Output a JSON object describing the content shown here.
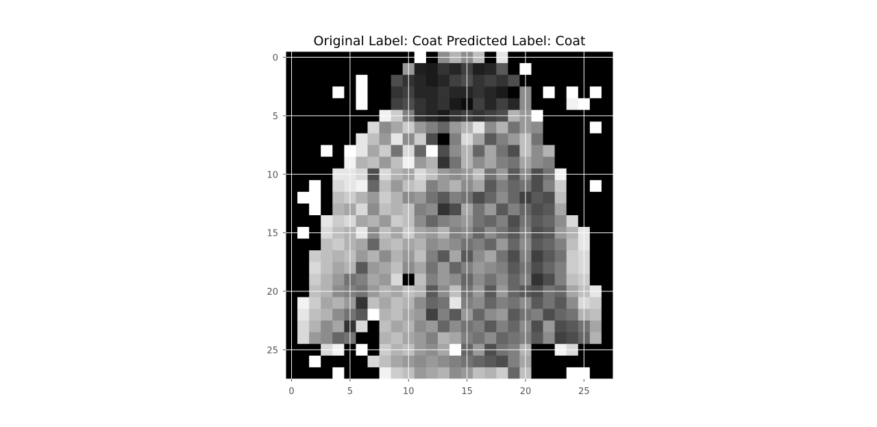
{
  "chart_data": {
    "type": "heatmap",
    "title": "Original Label: Coat  Predicted Label: Coat",
    "xlabel": "",
    "ylabel": "",
    "colormap": "gray",
    "grid": true,
    "grid_color": "#ffffff",
    "xlim": [
      -0.5,
      27.5
    ],
    "ylim": [
      27.5,
      -0.5
    ],
    "x_ticks": [
      0,
      5,
      10,
      15,
      20,
      25
    ],
    "y_ticks": [
      0,
      5,
      10,
      15,
      20,
      25
    ],
    "value_range": [
      0,
      1
    ],
    "rows": 28,
    "cols": 28,
    "values": [
      [
        0,
        0,
        0,
        0,
        0,
        0,
        0,
        0,
        0,
        0,
        0,
        1,
        0,
        0.55,
        0.7,
        0.55,
        0.75,
        0,
        0.9,
        0,
        0,
        0,
        0,
        0,
        0,
        0,
        0,
        0
      ],
      [
        0,
        0,
        0,
        0,
        0,
        0,
        0,
        0,
        0,
        0,
        0.6,
        0.12,
        0.1,
        0.2,
        0.15,
        0.25,
        0.12,
        0.15,
        0.35,
        0,
        1,
        0,
        0,
        0,
        0,
        0,
        0,
        0
      ],
      [
        0,
        0,
        0,
        0,
        0,
        0,
        1,
        0,
        0,
        0.3,
        0.2,
        0.15,
        0.1,
        0.15,
        0.25,
        0.3,
        0.2,
        0.25,
        0.2,
        0.3,
        0,
        0,
        0,
        0,
        0,
        0,
        0,
        0
      ],
      [
        0,
        0,
        0,
        0,
        1,
        0,
        1,
        0,
        0,
        0.2,
        0.25,
        0.15,
        0.15,
        0.2,
        0.15,
        0.15,
        0.2,
        0.15,
        0.1,
        0,
        0.55,
        0,
        1,
        0,
        1,
        0,
        1,
        0
      ],
      [
        0,
        0,
        0,
        0,
        0,
        0,
        1,
        0,
        0,
        0.25,
        0.3,
        0.2,
        0.15,
        0.2,
        0.1,
        0.05,
        0.25,
        0.15,
        0.25,
        0.15,
        0.55,
        0,
        0,
        0,
        0.95,
        1,
        0,
        0
      ],
      [
        0,
        0,
        0,
        0,
        0,
        0,
        0,
        0,
        0.95,
        0.8,
        0.5,
        0.2,
        0.15,
        0.1,
        0.2,
        0.25,
        0.2,
        0.25,
        0.3,
        0.7,
        0.6,
        1,
        0,
        0,
        0,
        0,
        0,
        0
      ],
      [
        0,
        0,
        0,
        0,
        0,
        0,
        0,
        0.85,
        0.55,
        0.65,
        0.8,
        0.6,
        0.5,
        0.4,
        0.6,
        0.7,
        0.9,
        0.55,
        0.7,
        0.45,
        0.6,
        0.55,
        0,
        0,
        0,
        0,
        1,
        0
      ],
      [
        0,
        0,
        0,
        0,
        0,
        0,
        0.9,
        0.75,
        0.6,
        0.9,
        0.55,
        0.8,
        0.3,
        0,
        0.5,
        0.85,
        0.65,
        0.35,
        0.5,
        0.6,
        0.75,
        0.45,
        0,
        0,
        0,
        0,
        0,
        0
      ],
      [
        0,
        0,
        0,
        1,
        0,
        1,
        0.9,
        0.65,
        0.8,
        0.45,
        0.85,
        0.4,
        1,
        0.3,
        0.55,
        0.7,
        0.4,
        0.65,
        0.45,
        0.3,
        0.75,
        0.55,
        0.7,
        0,
        0,
        0,
        0,
        0
      ],
      [
        0,
        0,
        0,
        0,
        0,
        0.95,
        0.7,
        0.75,
        0.6,
        0.75,
        0.95,
        0.6,
        0.7,
        0.2,
        0.45,
        0.7,
        0.55,
        0.65,
        0.5,
        0.45,
        0.65,
        0.55,
        0.5,
        0,
        0,
        0,
        0,
        0
      ],
      [
        0,
        0,
        0,
        0,
        0.9,
        0.9,
        0.85,
        0.3,
        0.85,
        0.7,
        0.65,
        0.85,
        0.75,
        0.6,
        0.55,
        0.6,
        0.75,
        0.45,
        0.6,
        0.35,
        0.55,
        0.3,
        0.45,
        0.95,
        0,
        0,
        0,
        0
      ],
      [
        0,
        0,
        1,
        0,
        0.85,
        0.9,
        0.95,
        0.4,
        0.75,
        0.6,
        0.75,
        0.8,
        0.5,
        0.6,
        0.7,
        0.55,
        0.65,
        0.35,
        0.5,
        0.4,
        0.45,
        0.3,
        0.5,
        0.8,
        0,
        0,
        1,
        0
      ],
      [
        0,
        1,
        1,
        0,
        0.75,
        0.8,
        0.7,
        0.6,
        0.8,
        0.7,
        0.55,
        0.6,
        0.45,
        0.35,
        0.5,
        0.45,
        0.3,
        0.4,
        0.55,
        0.4,
        0.25,
        0.35,
        0.3,
        0.75,
        0,
        0,
        0,
        0
      ],
      [
        0,
        0,
        1,
        0,
        0.7,
        0.65,
        0.85,
        0.55,
        0.75,
        0.7,
        0.75,
        0.5,
        0.55,
        0.2,
        0.3,
        0.65,
        0.45,
        0.6,
        0.35,
        0.5,
        0.4,
        0.3,
        0.35,
        0.65,
        0,
        0,
        0,
        0
      ],
      [
        0,
        0,
        0,
        0.9,
        0.8,
        0.85,
        0.65,
        0.7,
        0.6,
        0.8,
        0.75,
        0.55,
        0.4,
        0.5,
        0.55,
        0.6,
        0.45,
        0.4,
        0.5,
        0.3,
        0.45,
        0.35,
        0.4,
        0.55,
        0.85,
        0,
        0,
        0
      ],
      [
        0,
        1,
        0,
        0.85,
        0.75,
        0.7,
        0.9,
        0.55,
        0.75,
        0.65,
        0.8,
        0.65,
        0.6,
        0.7,
        0.5,
        0.55,
        0.4,
        0.55,
        0.45,
        0.35,
        0.5,
        0.3,
        0.35,
        0.6,
        0.7,
        0.9,
        0,
        0
      ],
      [
        0,
        0,
        0,
        0.75,
        0.8,
        0.7,
        0.65,
        0.4,
        0.7,
        0.75,
        0.65,
        0.7,
        0.55,
        0.6,
        0.55,
        0.45,
        0.5,
        0.4,
        0.6,
        0.4,
        0.55,
        0.35,
        0.4,
        0.5,
        0.75,
        0.9,
        0,
        0
      ],
      [
        0,
        0,
        0.8,
        0.75,
        0.7,
        0.75,
        0.6,
        0.7,
        0.55,
        0.7,
        0.6,
        0.75,
        0.5,
        0.35,
        0.65,
        0.35,
        0.55,
        0.65,
        0.45,
        0.3,
        0.5,
        0.25,
        0.35,
        0.45,
        0.8,
        0.85,
        0,
        0
      ],
      [
        0,
        0,
        0.85,
        0.75,
        0.65,
        0.7,
        0.35,
        0.6,
        0.65,
        0.75,
        0.55,
        0.65,
        0.45,
        0.6,
        0.4,
        0.5,
        0.6,
        0.55,
        0.5,
        0.35,
        0.45,
        0.3,
        0.4,
        0.5,
        0.8,
        0.85,
        0,
        0
      ],
      [
        0,
        0,
        0.8,
        0.7,
        0.6,
        0.45,
        0.5,
        0.65,
        0.6,
        0.85,
        0,
        0.75,
        0.5,
        0.6,
        0.55,
        0.4,
        0.55,
        0.45,
        0.55,
        0.4,
        0.5,
        0.2,
        0.3,
        0.5,
        0.75,
        0.8,
        0,
        0
      ],
      [
        0,
        0,
        0.75,
        0.7,
        0.55,
        0.5,
        0.45,
        0.6,
        0.7,
        0.65,
        0.75,
        0.7,
        0.35,
        0.55,
        0.75,
        0.45,
        0.6,
        0.35,
        0.6,
        0.4,
        0.35,
        0.3,
        0.45,
        0.4,
        0.65,
        0.75,
        0.9,
        0
      ],
      [
        0,
        0.95,
        0.8,
        0.65,
        0.7,
        0.6,
        0.2,
        0.75,
        0.65,
        0.75,
        0.7,
        0.55,
        0.4,
        0.45,
        0.9,
        0.5,
        0.55,
        0.4,
        0.5,
        0.45,
        0.55,
        0.35,
        0.45,
        0.35,
        0.55,
        0.85,
        0.8,
        0
      ],
      [
        0,
        0.9,
        0.75,
        0.7,
        0.55,
        0.45,
        0.35,
        1,
        0.7,
        0.75,
        0.65,
        0.6,
        0.25,
        0.5,
        0.35,
        0.6,
        0.4,
        0.55,
        0.6,
        0.35,
        0.45,
        0.5,
        0.3,
        0.4,
        0.45,
        0.7,
        0.75,
        0
      ],
      [
        0,
        0.85,
        0.7,
        0.55,
        0.65,
        0.2,
        0.85,
        0,
        0.75,
        0.65,
        0.7,
        0.55,
        0.6,
        0.4,
        0.55,
        0.45,
        0.5,
        0.35,
        0.5,
        0.4,
        0.55,
        0.3,
        0.6,
        0.3,
        0.35,
        0.45,
        0.65,
        0
      ],
      [
        0,
        0.85,
        0.6,
        0.55,
        0.4,
        0.45,
        0,
        0,
        0.7,
        0.75,
        0.65,
        0.6,
        0.5,
        0.7,
        0.65,
        0.5,
        0.45,
        0.55,
        0.4,
        0.45,
        0.5,
        0.35,
        0.55,
        0.25,
        0.3,
        0.4,
        0.7,
        0
      ],
      [
        0,
        0,
        0,
        0.85,
        0.95,
        0,
        1,
        0,
        0.8,
        0.7,
        0.75,
        0.6,
        0.55,
        0.65,
        1,
        0.4,
        0.6,
        0.3,
        0.45,
        0.5,
        0.7,
        0,
        0,
        0.95,
        0.85,
        0,
        0,
        0
      ],
      [
        0,
        0,
        1,
        0,
        0,
        0,
        0,
        0.85,
        0.75,
        0.65,
        0.6,
        0.55,
        0.6,
        0.55,
        0.5,
        0.45,
        0.4,
        0.35,
        0.3,
        0.5,
        0.65,
        0,
        0,
        0,
        0,
        0,
        0,
        0
      ],
      [
        0,
        0,
        0,
        0,
        1,
        0,
        0,
        0,
        0.95,
        0.8,
        0.75,
        0.6,
        0.65,
        0.7,
        0.55,
        0.6,
        0.75,
        0.7,
        0.8,
        0.4,
        0.75,
        0,
        0,
        0,
        1,
        1,
        0,
        0
      ]
    ]
  }
}
